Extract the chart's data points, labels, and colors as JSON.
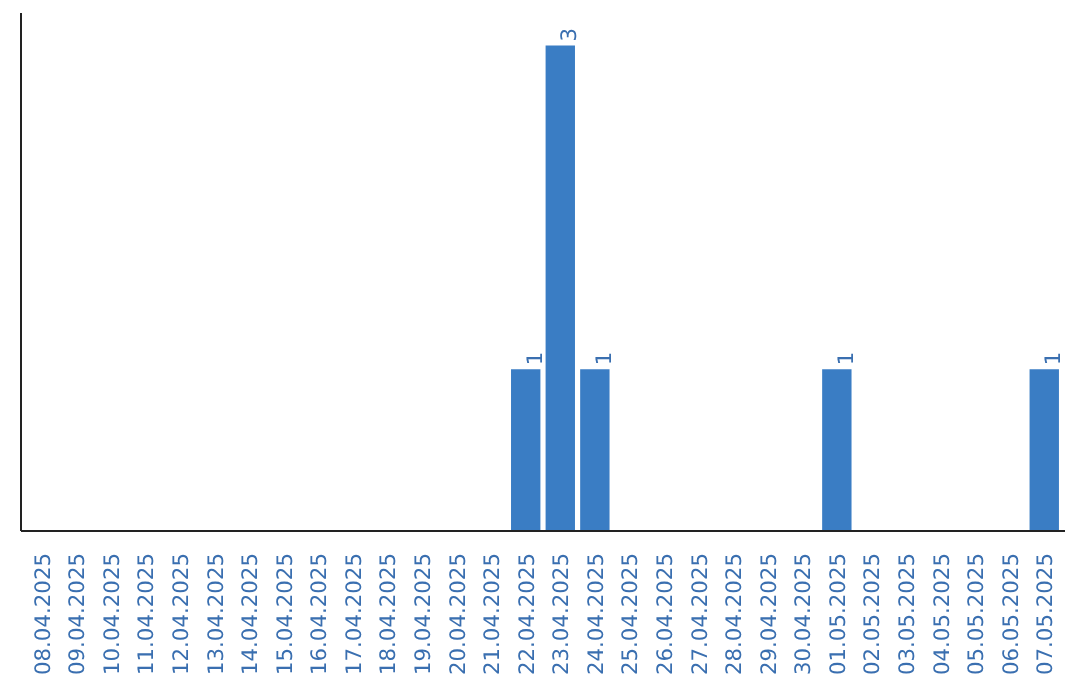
{
  "chart_data": {
    "type": "bar",
    "categories": [
      "08.04.2025",
      "09.04.2025",
      "10.04.2025",
      "11.04.2025",
      "12.04.2025",
      "13.04.2025",
      "14.04.2025",
      "15.04.2025",
      "16.04.2025",
      "17.04.2025",
      "18.04.2025",
      "19.04.2025",
      "20.04.2025",
      "21.04.2025",
      "22.04.2025",
      "23.04.2025",
      "24.04.2025",
      "25.04.2025",
      "26.04.2025",
      "27.04.2025",
      "28.04.2025",
      "29.04.2025",
      "30.04.2025",
      "01.05.2025",
      "02.05.2025",
      "03.05.2025",
      "04.05.2025",
      "05.05.2025",
      "06.05.2025",
      "07.05.2025"
    ],
    "values": [
      null,
      null,
      null,
      null,
      null,
      null,
      null,
      null,
      null,
      null,
      null,
      null,
      null,
      null,
      1,
      3,
      1,
      null,
      null,
      null,
      null,
      null,
      null,
      1,
      null,
      null,
      null,
      null,
      null,
      1
    ],
    "ylim": [
      0,
      3.2
    ],
    "value_labels": [
      null,
      null,
      null,
      null,
      null,
      null,
      null,
      null,
      null,
      null,
      null,
      null,
      null,
      null,
      "1",
      "3",
      "1",
      null,
      null,
      null,
      null,
      null,
      null,
      "1",
      null,
      null,
      null,
      null,
      null,
      "1"
    ],
    "color": "#3a7dc4",
    "tick_labels": "x",
    "grid": false
  }
}
